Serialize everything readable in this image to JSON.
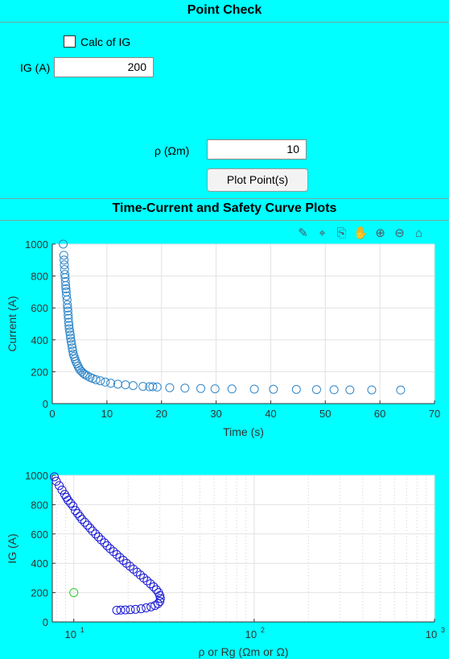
{
  "point_check": {
    "title": "Point Check",
    "calc_ig_label": "Calc of IG",
    "ig_label": "IG (A)",
    "ig_value": "200",
    "rho_label": "ρ (Ωm)",
    "rho_value": "10",
    "plot_button": "Plot Point(s)"
  },
  "plots_section": {
    "title": "Time-Current and Safety Curve Plots",
    "toolbar_icons": [
      "brush-icon",
      "data-tips-icon",
      "export-icon",
      "pan-icon",
      "zoom-in-icon",
      "zoom-out-icon",
      "home-icon"
    ]
  },
  "colors": {
    "background": "#00FFFF",
    "series1": "#2f86c9",
    "series2": "#1a1ad6",
    "point": "#22cc22"
  },
  "chart_data": [
    {
      "type": "scatter",
      "xlabel": "Time (s)",
      "ylabel": "Current (A)",
      "xlim": [
        0,
        70
      ],
      "ylim": [
        0,
        1000
      ],
      "xticks": [
        0,
        10,
        20,
        30,
        40,
        50,
        60,
        70
      ],
      "yticks": [
        0,
        200,
        400,
        600,
        800,
        1000
      ],
      "grid": true,
      "series": [
        {
          "points": [
            [
              2.0,
              1000
            ],
            [
              2.1,
              930
            ],
            [
              2.15,
              900
            ],
            [
              2.2,
              870
            ],
            [
              2.25,
              840
            ],
            [
              2.3,
              810
            ],
            [
              2.35,
              790
            ],
            [
              2.4,
              765
            ],
            [
              2.45,
              740
            ],
            [
              2.5,
              720
            ],
            [
              2.55,
              700
            ],
            [
              2.6,
              675
            ],
            [
              2.7,
              650
            ],
            [
              2.75,
              620
            ],
            [
              2.8,
              600
            ],
            [
              2.85,
              580
            ],
            [
              2.9,
              555
            ],
            [
              2.95,
              535
            ],
            [
              3.0,
              510
            ],
            [
              3.05,
              490
            ],
            [
              3.1,
              470
            ],
            [
              3.2,
              450
            ],
            [
              3.3,
              430
            ],
            [
              3.35,
              410
            ],
            [
              3.45,
              390
            ],
            [
              3.55,
              370
            ],
            [
              3.65,
              350
            ],
            [
              3.75,
              330
            ],
            [
              3.85,
              310
            ],
            [
              4.0,
              295
            ],
            [
              4.15,
              280
            ],
            [
              4.3,
              265
            ],
            [
              4.5,
              250
            ],
            [
              4.7,
              235
            ],
            [
              4.9,
              222
            ],
            [
              5.1,
              210
            ],
            [
              5.4,
              200
            ],
            [
              5.7,
              190
            ],
            [
              6.0,
              182
            ],
            [
              6.4,
              175
            ],
            [
              6.9,
              165
            ],
            [
              7.4,
              158
            ],
            [
              8.0,
              150
            ],
            [
              8.8,
              143
            ],
            [
              9.7,
              135
            ],
            [
              10.7,
              128
            ],
            [
              12.0,
              122
            ],
            [
              13.4,
              118
            ],
            [
              14.8,
              113
            ],
            [
              16.6,
              108
            ],
            [
              17.8,
              106
            ],
            [
              18.4,
              106
            ],
            [
              19.2,
              104
            ],
            [
              21.5,
              100
            ],
            [
              24.3,
              97
            ],
            [
              27.2,
              95
            ],
            [
              29.8,
              93
            ],
            [
              32.9,
              92
            ],
            [
              37.0,
              91
            ],
            [
              40.5,
              90
            ],
            [
              44.7,
              89
            ],
            [
              48.4,
              88
            ],
            [
              51.6,
              87
            ],
            [
              54.5,
              86
            ],
            [
              58.5,
              86
            ],
            [
              63.8,
              85
            ]
          ]
        }
      ]
    },
    {
      "type": "scatter",
      "xlabel": "ρ or Rg (Ωm or Ω)",
      "ylabel": "IG (A)",
      "xscale": "log",
      "xlim": [
        7.6,
        1000
      ],
      "ylim": [
        0,
        1000
      ],
      "xtick_labels": [
        "10",
        "10",
        "10"
      ],
      "xtick_exponents": [
        "1",
        "2",
        "3"
      ],
      "xtick_values": [
        10,
        100,
        1000
      ],
      "yticks": [
        0,
        200,
        400,
        600,
        800,
        1000
      ],
      "grid": true,
      "series": [
        {
          "points": [
            [
              7.8,
              990
            ],
            [
              8.0,
              960
            ],
            [
              8.3,
              930
            ],
            [
              8.6,
              900
            ],
            [
              8.9,
              870
            ],
            [
              9.1,
              850
            ],
            [
              9.3,
              830
            ],
            [
              9.6,
              810
            ],
            [
              9.9,
              790
            ],
            [
              10.2,
              760
            ],
            [
              10.5,
              740
            ],
            [
              10.8,
              720
            ],
            [
              11.1,
              700
            ],
            [
              11.5,
              680
            ],
            [
              11.9,
              660
            ],
            [
              12.3,
              640
            ],
            [
              12.7,
              620
            ],
            [
              13.2,
              600
            ],
            [
              13.7,
              580
            ],
            [
              14.2,
              560
            ],
            [
              14.8,
              540
            ],
            [
              15.3,
              520
            ],
            [
              15.9,
              500
            ],
            [
              16.6,
              480
            ],
            [
              17.3,
              460
            ],
            [
              18.0,
              440
            ],
            [
              18.8,
              420
            ],
            [
              19.6,
              400
            ],
            [
              20.5,
              380
            ],
            [
              21.4,
              360
            ],
            [
              22.4,
              340
            ],
            [
              23.4,
              320
            ],
            [
              24.4,
              300
            ],
            [
              25.5,
              280
            ],
            [
              26.6,
              260
            ],
            [
              27.7,
              240
            ],
            [
              28.7,
              220
            ],
            [
              29.5,
              200
            ],
            [
              30.0,
              180
            ],
            [
              30.2,
              160
            ],
            [
              30.0,
              140
            ],
            [
              29.3,
              125
            ],
            [
              28.2,
              112
            ],
            [
              26.8,
              103
            ],
            [
              25.2,
              96
            ],
            [
              23.6,
              90
            ],
            [
              22.0,
              86
            ],
            [
              20.6,
              84
            ],
            [
              19.3,
              82
            ],
            [
              18.2,
              81
            ],
            [
              17.3,
              80
            ]
          ]
        },
        {
          "points": [
            [
              10,
              200
            ]
          ]
        }
      ]
    }
  ]
}
